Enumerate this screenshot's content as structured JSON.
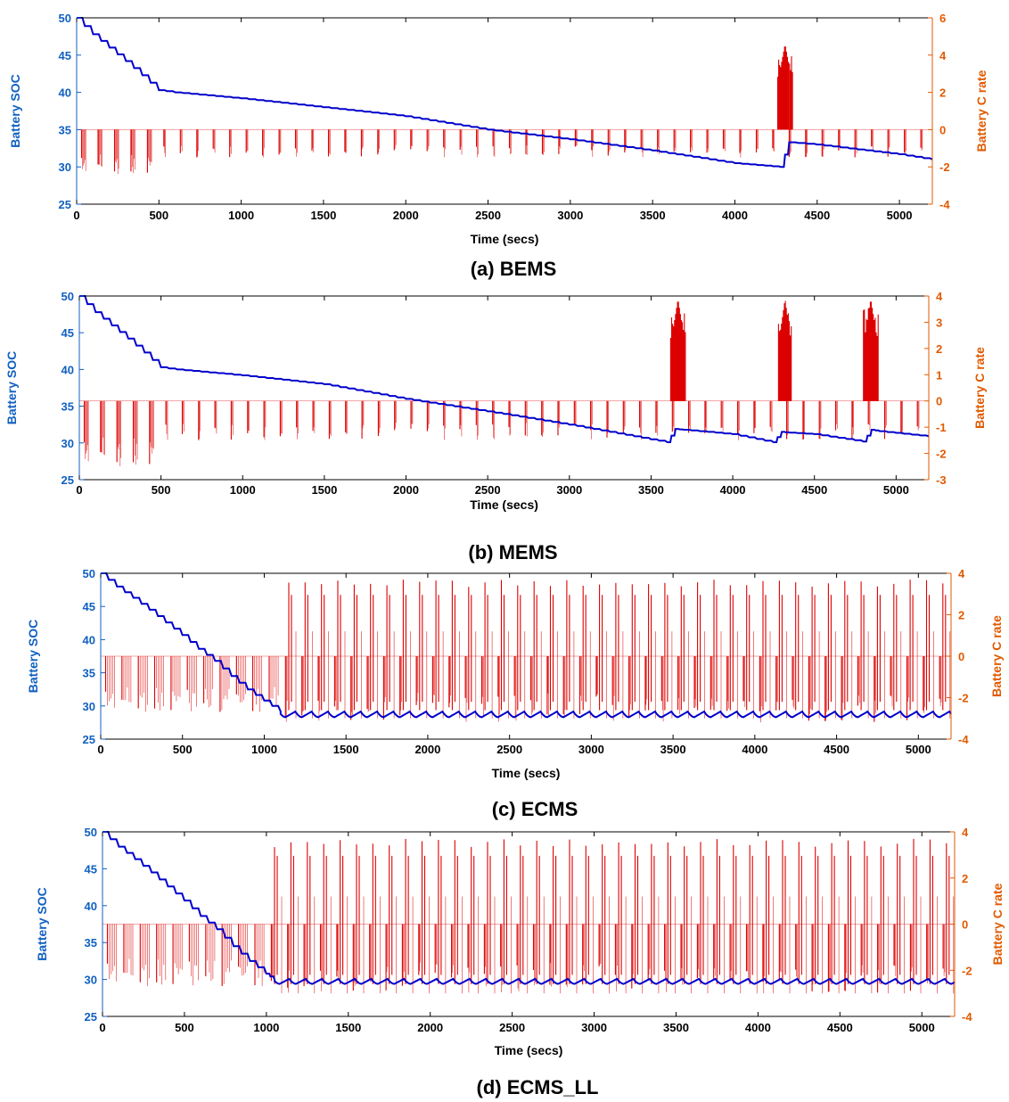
{
  "colors": {
    "soc_line": "#0000cc",
    "c_rate_line": "#dd0000",
    "left_axis": "#1060c0",
    "right_axis": "#e05a00",
    "axis_frame": "#000000"
  },
  "chart_data": [
    {
      "type": "line",
      "caption": "(a) BEMS",
      "xlabel": "Time (secs)",
      "ylabel_left": "Battery SOC",
      "ylabel_right": "Battery C rate",
      "xlim": [
        0,
        5200
      ],
      "ylim_left": [
        25,
        50
      ],
      "ylim_right": [
        -4,
        6
      ],
      "x_ticks": [
        0,
        500,
        1000,
        1500,
        2000,
        2500,
        3000,
        3500,
        4000,
        4500,
        5000
      ],
      "y_ticks_left": [
        25,
        30,
        35,
        40,
        45,
        50
      ],
      "y_ticks_right": [
        -4,
        -2,
        0,
        2,
        4,
        6
      ],
      "grid": false,
      "series": [
        {
          "axis": "left",
          "x": [
            0,
            100,
            200,
            300,
            400,
            500,
            600,
            1000,
            1500,
            2000,
            2500,
            3000,
            3500,
            4000,
            4280,
            4330,
            4500,
            5000,
            5200
          ],
          "values": [
            50,
            47.8,
            46,
            44.2,
            42.3,
            40.3,
            40.0,
            39.2,
            38.0,
            36.8,
            35.0,
            33.7,
            32.2,
            30.5,
            30.0,
            33.3,
            33.0,
            31.7,
            31.0
          ]
        },
        {
          "axis": "right",
          "pulse_period": 100,
          "pulse_min": -1.5,
          "early_end": 520,
          "early_min": -2.4,
          "positive_bursts": [
            {
              "x": [
                4260,
                4350
              ],
              "peak": 4.6
            }
          ]
        }
      ]
    },
    {
      "type": "line",
      "caption": "(b) MEMS",
      "xlabel": "Time (secs)",
      "ylabel_left": "Battery SOC",
      "ylabel_right": "Battery C rate",
      "xlim": [
        0,
        5200
      ],
      "ylim_left": [
        25,
        50
      ],
      "ylim_right": [
        -3,
        4
      ],
      "x_ticks": [
        0,
        500,
        1000,
        1500,
        2000,
        2500,
        3000,
        3500,
        4000,
        4500,
        5000
      ],
      "y_ticks_left": [
        25,
        30,
        35,
        40,
        45,
        50
      ],
      "y_ticks_right": [
        -3,
        -2,
        -1,
        0,
        1,
        2,
        3,
        4
      ],
      "grid": false,
      "series": [
        {
          "axis": "left",
          "x": [
            0,
            100,
            200,
            300,
            400,
            500,
            600,
            1000,
            1500,
            2000,
            2500,
            3000,
            3600,
            3650,
            3700,
            4000,
            4250,
            4300,
            4350,
            4500,
            4800,
            4850,
            4900,
            5200
          ],
          "values": [
            50,
            47.8,
            46,
            44.2,
            42.3,
            40.3,
            40.0,
            39.2,
            38.0,
            36.0,
            34.3,
            32.5,
            30.1,
            31.9,
            31.8,
            31.2,
            30.1,
            31.5,
            31.4,
            31.2,
            30.2,
            31.8,
            31.6,
            30.9
          ]
        },
        {
          "axis": "right",
          "pulse_period": 100,
          "pulse_min": -1.5,
          "early_end": 520,
          "early_min": -2.5,
          "positive_bursts": [
            {
              "x": [
                3620,
                3710
              ],
              "peak": 3.9
            },
            {
              "x": [
                4280,
                4360
              ],
              "peak": 3.9
            },
            {
              "x": [
                4800,
                4890
              ],
              "peak": 3.9
            }
          ]
        }
      ]
    },
    {
      "type": "line",
      "caption": "(c) ECMS",
      "xlabel": "Time (secs)",
      "ylabel_left": "Battery SOC",
      "ylabel_right": "Battery C rate",
      "xlim": [
        0,
        5200
      ],
      "ylim_left": [
        25,
        50
      ],
      "ylim_right": [
        -4,
        4
      ],
      "x_ticks": [
        0,
        500,
        1000,
        1500,
        2000,
        2500,
        3000,
        3500,
        4000,
        4500,
        5000
      ],
      "y_ticks_left": [
        25,
        30,
        35,
        40,
        45,
        50
      ],
      "y_ticks_right": [
        -4,
        -2,
        0,
        2,
        4
      ],
      "grid": false,
      "series": [
        {
          "axis": "left",
          "x": [
            0,
            100,
            200,
            300,
            400,
            500,
            600,
            700,
            800,
            900,
            1000,
            1100
          ],
          "values": [
            50,
            48.0,
            46.3,
            44.5,
            42.6,
            40.7,
            38.6,
            36.8,
            34.5,
            32.5,
            30.8,
            29.2
          ],
          "oscillation": {
            "from": 1100,
            "to": 5200,
            "period": 100,
            "center": 28.8,
            "amplitude": 0.5
          }
        },
        {
          "axis": "right",
          "pulse_period": 100,
          "pulse_min": -2.2,
          "pos_start": 1100,
          "pos_peak": 3.7,
          "neg_min_late": -3.2
        }
      ]
    },
    {
      "type": "line",
      "caption": "(d) ECMS_LL",
      "xlabel": "Time (secs)",
      "ylabel_left": "Battery SOC",
      "ylabel_right": "Battery C rate",
      "xlim": [
        0,
        5200
      ],
      "ylim_left": [
        25,
        50
      ],
      "ylim_right": [
        -4,
        4
      ],
      "x_ticks": [
        0,
        500,
        1000,
        1500,
        2000,
        2500,
        3000,
        3500,
        4000,
        4500,
        5000
      ],
      "y_ticks_left": [
        25,
        30,
        35,
        40,
        45,
        50
      ],
      "y_ticks_right": [
        -4,
        -2,
        0,
        2,
        4
      ],
      "grid": false,
      "series": [
        {
          "axis": "left",
          "x": [
            0,
            100,
            200,
            300,
            400,
            500,
            600,
            700,
            800,
            900,
            1000,
            1050
          ],
          "values": [
            50,
            48.0,
            46.3,
            44.5,
            42.6,
            40.7,
            38.6,
            36.8,
            34.5,
            32.5,
            30.8,
            30.0
          ],
          "oscillation": {
            "from": 1050,
            "to": 5200,
            "period": 100,
            "center": 29.8,
            "amplitude": 0.4
          }
        },
        {
          "axis": "right",
          "pulse_period": 100,
          "pulse_min": -2.2,
          "pos_start": 1000,
          "pos_peak": 3.7,
          "neg_min_late": -3.0
        }
      ]
    }
  ]
}
